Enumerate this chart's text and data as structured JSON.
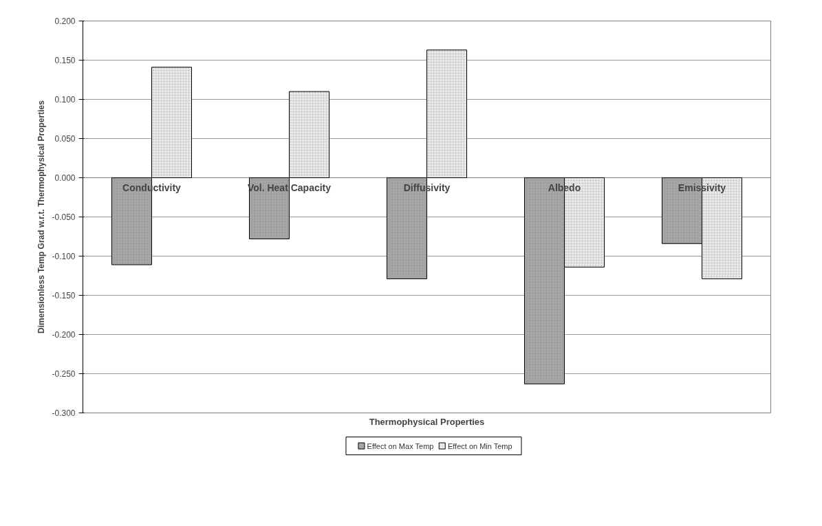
{
  "chart_data": {
    "type": "bar",
    "xlabel": "Thermophysical Properties",
    "ylabel": "Dimensionless Temp Grad w.r.t. Thermophysical Properties",
    "categories": [
      "Conductivity",
      "Vol. Heat Capacity",
      "Diffusivity",
      "Albedo",
      "Emissivity"
    ],
    "series": [
      {
        "name": "Effect on Max Temp",
        "color": "#a6a6a6",
        "values": [
          -0.111,
          -0.078,
          -0.129,
          -0.263,
          -0.084
        ]
      },
      {
        "name": "Effect on Min Temp",
        "color": "#e8e8e8",
        "values": [
          0.141,
          0.11,
          0.163,
          -0.114,
          -0.129
        ]
      }
    ],
    "ylim": [
      -0.3,
      0.2
    ],
    "yticks": [
      {
        "value": -0.3,
        "label": "-0.300"
      },
      {
        "value": -0.25,
        "label": "-0.250"
      },
      {
        "value": -0.2,
        "label": "-0.200"
      },
      {
        "value": -0.15,
        "label": "-0.150"
      },
      {
        "value": -0.1,
        "label": "-0.100"
      },
      {
        "value": -0.05,
        "label": "-0.050"
      },
      {
        "value": 0,
        "label": "0.000"
      },
      {
        "value": 0.05,
        "label": "0.050"
      },
      {
        "value": 0.1,
        "label": "0.100"
      },
      {
        "value": 0.15,
        "label": "0.150"
      },
      {
        "value": 0.2,
        "label": "0.200"
      }
    ],
    "grid": "y",
    "legend": "bottom"
  }
}
